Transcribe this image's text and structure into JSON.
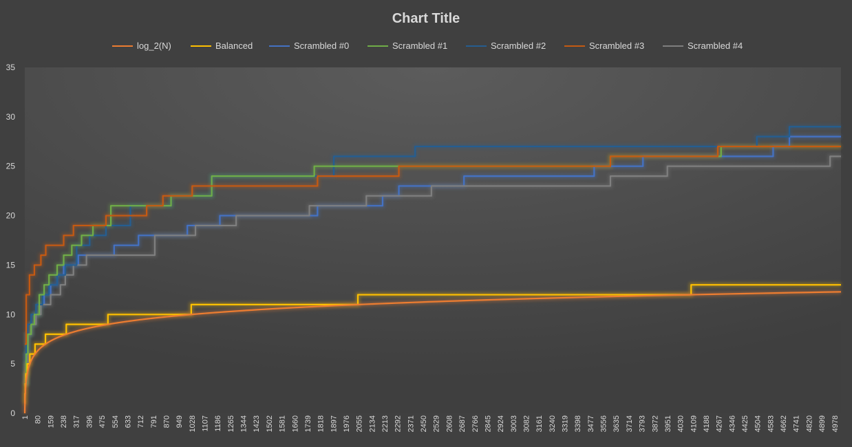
{
  "chart_data": {
    "type": "line",
    "title": "Chart Title",
    "xlabel": "",
    "ylabel": "",
    "ylim": [
      0,
      35
    ],
    "yticks": [
      0,
      5,
      10,
      15,
      20,
      25,
      30,
      35
    ],
    "xlim": [
      1,
      5017
    ],
    "x_tick_labels": [
      "1",
      "80",
      "159",
      "238",
      "317",
      "396",
      "475",
      "554",
      "633",
      "712",
      "791",
      "870",
      "949",
      "1028",
      "1107",
      "1186",
      "1265",
      "1344",
      "1423",
      "1502",
      "1581",
      "1660",
      "1739",
      "1818",
      "1897",
      "1976",
      "2055",
      "2134",
      "2213",
      "2292",
      "2371",
      "2450",
      "2529",
      "2608",
      "2687",
      "2766",
      "2845",
      "2924",
      "3003",
      "3082",
      "3161",
      "3240",
      "3319",
      "3398",
      "3477",
      "3556",
      "3635",
      "3714",
      "3793",
      "3872",
      "3951",
      "4030",
      "4109",
      "4188",
      "4267",
      "4346",
      "4425",
      "4504",
      "4583",
      "4662",
      "4741",
      "4820",
      "4899",
      "4978"
    ],
    "legend_position": "top",
    "series": [
      {
        "name": "log_2(N)",
        "color": "#ed7d31",
        "kind": "log2",
        "x": [],
        "y": []
      },
      {
        "name": "Balanced",
        "color": "#ffc000",
        "kind": "step",
        "x": [
          1,
          2,
          4,
          8,
          16,
          32,
          64,
          128,
          256,
          512,
          1024,
          2048,
          4096
        ],
        "y": [
          1,
          2,
          3,
          4,
          5,
          6,
          7,
          8,
          9,
          10,
          11,
          12,
          13
        ]
      },
      {
        "name": "Scrambled #0",
        "color": "#4472c4",
        "kind": "step",
        "x": [
          1,
          10,
          20,
          40,
          60,
          90,
          120,
          160,
          200,
          240,
          260,
          290,
          330,
          400,
          550,
          700,
          1000,
          1200,
          1800,
          1900,
          2200,
          2300,
          2700,
          3500,
          3800,
          4600,
          4700
        ],
        "y": [
          3,
          6,
          8,
          9,
          10,
          11,
          12,
          13,
          14,
          15,
          15,
          15,
          16,
          16,
          17,
          18,
          19,
          20,
          21,
          21,
          22,
          23,
          24,
          25,
          26,
          27,
          28
        ]
      },
      {
        "name": "Scrambled #1",
        "color": "#70ad47",
        "kind": "step",
        "x": [
          1,
          10,
          20,
          40,
          60,
          90,
          120,
          150,
          200,
          240,
          290,
          350,
          420,
          530,
          650,
          900,
          1100,
          1150,
          1780,
          1950,
          2300,
          3600,
          4280
        ],
        "y": [
          3,
          6,
          8,
          9,
          10,
          12,
          13,
          14,
          15,
          16,
          17,
          18,
          19,
          21,
          21,
          22,
          22,
          24,
          25,
          25,
          25,
          26,
          27
        ]
      },
      {
        "name": "Scrambled #2",
        "color": "#255e91",
        "kind": "step",
        "x": [
          1,
          10,
          20,
          40,
          70,
          110,
          150,
          200,
          250,
          320,
          400,
          500,
          650,
          750,
          900,
          1150,
          1800,
          1900,
          2400,
          4300,
          4500,
          4700
        ],
        "y": [
          3,
          8,
          9,
          10,
          11,
          12,
          13,
          14,
          15,
          17,
          18,
          19,
          21,
          21,
          22,
          24,
          24,
          26,
          27,
          27,
          28,
          29
        ]
      },
      {
        "name": "Scrambled #3",
        "color": "#c55a11",
        "kind": "step",
        "x": [
          1,
          10,
          30,
          60,
          100,
          130,
          170,
          240,
          300,
          380,
          500,
          650,
          750,
          850,
          1030,
          1150,
          1800,
          2300,
          3600,
          4260
        ],
        "y": [
          7,
          12,
          14,
          15,
          16,
          17,
          17,
          18,
          19,
          19,
          20,
          20,
          21,
          22,
          23,
          23,
          24,
          25,
          26,
          27
        ]
      },
      {
        "name": "Scrambled #4",
        "color": "#7f7f7f",
        "kind": "step",
        "x": [
          1,
          10,
          20,
          40,
          70,
          100,
          160,
          220,
          250,
          300,
          380,
          550,
          800,
          1050,
          1300,
          1750,
          2100,
          2500,
          3600,
          3950,
          4950
        ],
        "y": [
          3,
          5,
          8,
          9,
          10,
          11,
          12,
          13,
          14,
          15,
          16,
          16,
          18,
          19,
          20,
          21,
          22,
          23,
          24,
          25,
          26
        ]
      }
    ]
  }
}
